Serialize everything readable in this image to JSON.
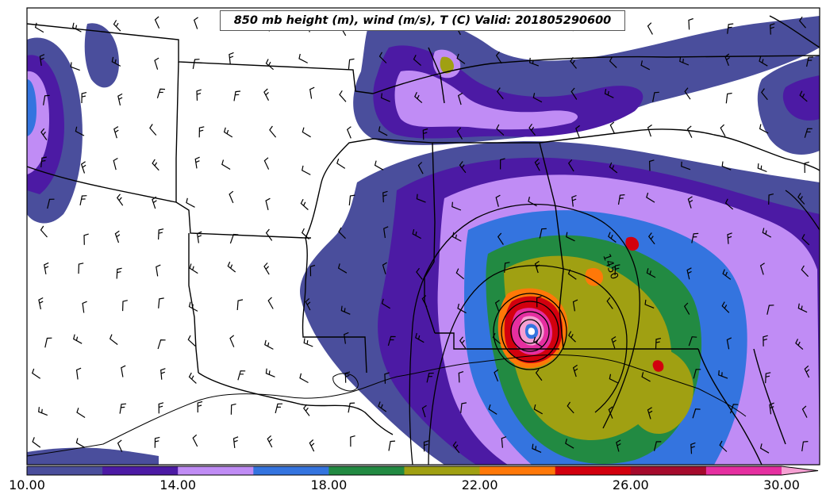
{
  "title": "850 mb height (m), wind (m/s), T (C) Valid: 201805290600",
  "contour_label": "1450",
  "colorbar": {
    "tick_labels": [
      "10.00",
      "14.00",
      "18.00",
      "22.00",
      "26.00",
      "30.00"
    ],
    "levels": [
      10,
      12,
      14,
      16,
      18,
      20,
      22,
      24,
      26,
      28,
      30
    ],
    "colors": [
      "#4a4e9c",
      "#4c1aa4",
      "#c08cf5",
      "#3474df",
      "#228a42",
      "#a0a012",
      "#ff7808",
      "#d2000e",
      "#a50a2c",
      "#e52fa0",
      "#f5a0d2"
    ],
    "extend": "max"
  },
  "colors": {
    "state_border": "#000000",
    "height_contour": "#000000",
    "wind_barb": "#000000"
  }
}
